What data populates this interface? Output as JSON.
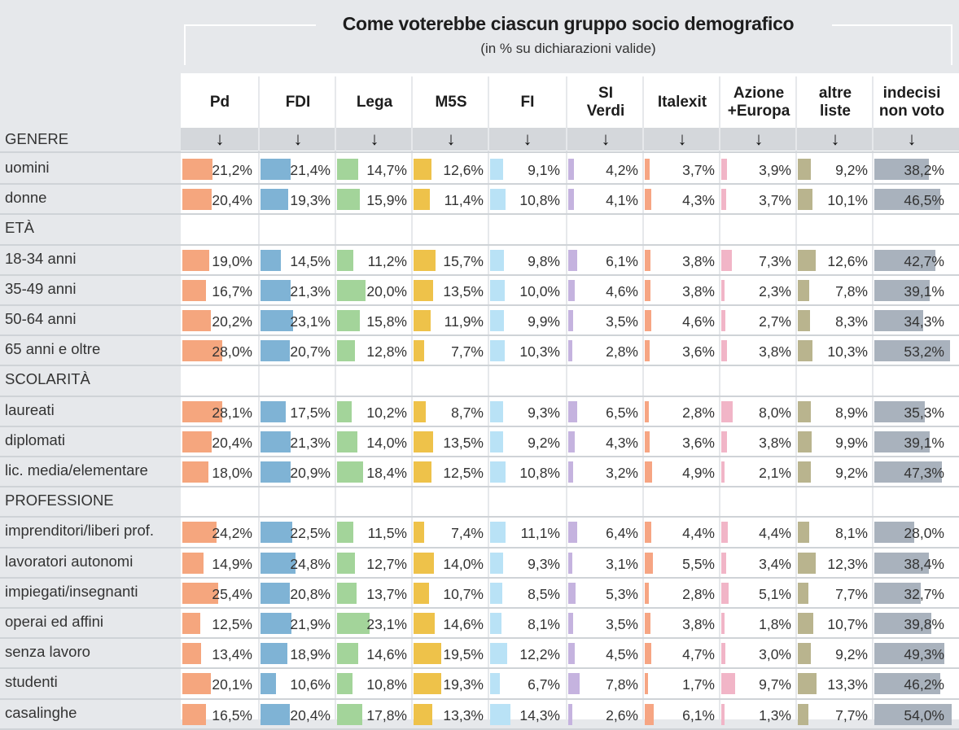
{
  "title": "Come voterebbe ciascun gruppo socio demografico",
  "subtitle": "(in % su dichiarazioni valide)",
  "arrow_glyph": "🠗",
  "columns": [
    {
      "label": "Pd",
      "color": "#f5a67e"
    },
    {
      "label": "FDI",
      "color": "#7fb3d5"
    },
    {
      "label": "Lega",
      "color": "#a3d49a"
    },
    {
      "label": "M5S",
      "color": "#eec24a"
    },
    {
      "label": "FI",
      "color": "#b9e2f6"
    },
    {
      "label": "SI\nVerdi",
      "color": "#c5b3df"
    },
    {
      "label": "Italexit",
      "color": "#f6a583"
    },
    {
      "label": "Azione\n+Europa",
      "color": "#f1b5c7"
    },
    {
      "label": "altre\nliste",
      "color": "#b9b48e"
    },
    {
      "label": "indecisi\nnon voto",
      "color": "#a9b2bd"
    }
  ],
  "chart_data": {
    "type": "table",
    "title": "Come voterebbe ciascun gruppo socio demografico",
    "subtitle": "(in % su dichiarazioni valide)",
    "series_names": [
      "Pd",
      "FDI",
      "Lega",
      "M5S",
      "FI",
      "SI Verdi",
      "Italexit",
      "Azione +Europa",
      "altre liste",
      "indecisi non voto"
    ],
    "rows": [
      {
        "section": "GENERE"
      },
      {
        "label": "uomini",
        "values": [
          "21,2%",
          "21,4%",
          "14,7%",
          "12,6%",
          "9,1%",
          "4,2%",
          "3,7%",
          "3,9%",
          "9,2%",
          "38,2%"
        ]
      },
      {
        "label": "donne",
        "values": [
          "20,4%",
          "19,3%",
          "15,9%",
          "11,4%",
          "10,8%",
          "4,1%",
          "4,3%",
          "3,7%",
          "10,1%",
          "46,5%"
        ]
      },
      {
        "section": "ETÀ"
      },
      {
        "label": "18-34 anni",
        "values": [
          "19,0%",
          "14,5%",
          "11,2%",
          "15,7%",
          "9,8%",
          "6,1%",
          "3,8%",
          "7,3%",
          "12,6%",
          "42,7%"
        ]
      },
      {
        "label": "35-49 anni",
        "values": [
          "16,7%",
          "21,3%",
          "20,0%",
          "13,5%",
          "10,0%",
          "4,6%",
          "3,8%",
          "2,3%",
          "7,8%",
          "39,1%"
        ]
      },
      {
        "label": "50-64 anni",
        "values": [
          "20,2%",
          "23,1%",
          "15,8%",
          "11,9%",
          "9,9%",
          "3,5%",
          "4,6%",
          "2,7%",
          "8,3%",
          "34,3%"
        ]
      },
      {
        "label": "65 anni e oltre",
        "values": [
          "28,0%",
          "20,7%",
          "12,8%",
          "7,7%",
          "10,3%",
          "2,8%",
          "3,6%",
          "3,8%",
          "10,3%",
          "53,2%"
        ]
      },
      {
        "section": "SCOLARITÀ"
      },
      {
        "label": "laureati",
        "values": [
          "28,1%",
          "17,5%",
          "10,2%",
          "8,7%",
          "9,3%",
          "6,5%",
          "2,8%",
          "8,0%",
          "8,9%",
          "35,3%"
        ]
      },
      {
        "label": "diplomati",
        "values": [
          "20,4%",
          "21,3%",
          "14,0%",
          "13,5%",
          "9,2%",
          "4,3%",
          "3,6%",
          "3,8%",
          "9,9%",
          "39,1%"
        ]
      },
      {
        "label": "lic. media/elementare",
        "values": [
          "18,0%",
          "20,9%",
          "18,4%",
          "12,5%",
          "10,8%",
          "3,2%",
          "4,9%",
          "2,1%",
          "9,2%",
          "47,3%"
        ]
      },
      {
        "section": "PROFESSIONE"
      },
      {
        "label": "imprenditori/liberi prof.",
        "values": [
          "24,2%",
          "22,5%",
          "11,5%",
          "7,4%",
          "11,1%",
          "6,4%",
          "4,4%",
          "4,4%",
          "8,1%",
          "28,0%"
        ]
      },
      {
        "label": "lavoratori autonomi",
        "values": [
          "14,9%",
          "24,8%",
          "12,7%",
          "14,0%",
          "9,3%",
          "3,1%",
          "5,5%",
          "3,4%",
          "12,3%",
          "38,4%"
        ]
      },
      {
        "label": "impiegati/insegnanti",
        "values": [
          "25,4%",
          "20,8%",
          "13,7%",
          "10,7%",
          "8,5%",
          "5,3%",
          "2,8%",
          "5,1%",
          "7,7%",
          "32,7%"
        ]
      },
      {
        "label": "operai ed affini",
        "values": [
          "12,5%",
          "21,9%",
          "23,1%",
          "14,6%",
          "8,1%",
          "3,5%",
          "3,8%",
          "1,8%",
          "10,7%",
          "39,8%"
        ]
      },
      {
        "label": "senza lavoro",
        "values": [
          "13,4%",
          "18,9%",
          "14,6%",
          "19,5%",
          "12,2%",
          "4,5%",
          "4,7%",
          "3,0%",
          "9,2%",
          "49,3%"
        ]
      },
      {
        "label": "studenti",
        "values": [
          "20,1%",
          "10,6%",
          "10,8%",
          "19,3%",
          "6,7%",
          "7,8%",
          "1,7%",
          "9,7%",
          "13,3%",
          "46,2%"
        ]
      },
      {
        "label": "casalinghe",
        "values": [
          "16,5%",
          "20,4%",
          "17,8%",
          "13,3%",
          "14,3%",
          "2,6%",
          "6,1%",
          "1,3%",
          "7,7%",
          "54,0%"
        ]
      }
    ]
  }
}
